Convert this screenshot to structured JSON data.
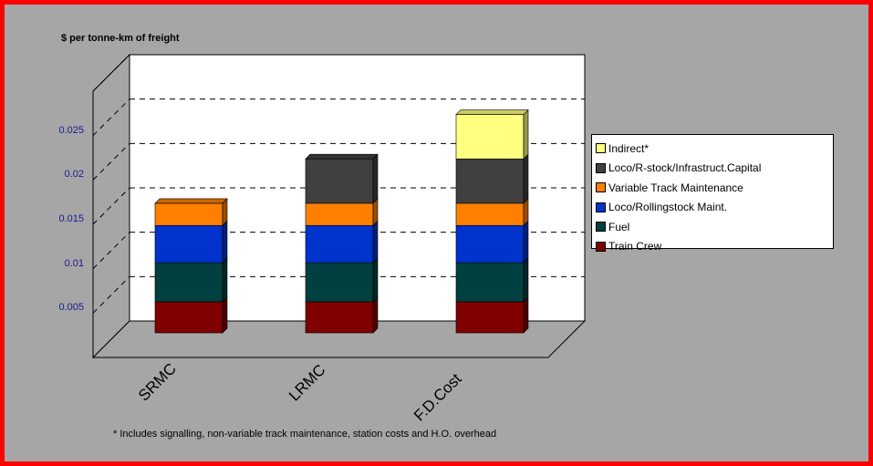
{
  "chart_data": {
    "type": "bar",
    "stacked": true,
    "three_d": true,
    "ylabel": "$ per tonne-km of freight",
    "yticks": [
      "0.005",
      "0.01",
      "0.015",
      "0.02",
      "0.025"
    ],
    "ylim": [
      0,
      0.03
    ],
    "grid": true,
    "categories": [
      "SRMC",
      "LRMC",
      "F.D.Cost"
    ],
    "series": [
      {
        "name": "Train Crew",
        "color": "#800000",
        "values": [
          0.0035,
          0.0035,
          0.0035
        ]
      },
      {
        "name": "Fuel",
        "color": "#004040",
        "values": [
          0.0044,
          0.0044,
          0.0044
        ]
      },
      {
        "name": "Loco/Rollingstock Maint.",
        "color": "#0033cc",
        "values": [
          0.0042,
          0.0042,
          0.0042
        ]
      },
      {
        "name": "Variable Track Maintenance",
        "color": "#ff8000",
        "values": [
          0.0025,
          0.0025,
          0.0025
        ]
      },
      {
        "name": "Loco/R-stock/Infrastruct.Capital",
        "color": "#404040",
        "values": [
          0,
          0.005,
          0.005
        ]
      },
      {
        "name": "Indirect*",
        "color": "#ffff80",
        "values": [
          0,
          0,
          0.005
        ]
      }
    ],
    "legend_position": "right",
    "footnote": "* Includes signalling, non-variable track maintenance, station costs and H.O. overhead"
  }
}
